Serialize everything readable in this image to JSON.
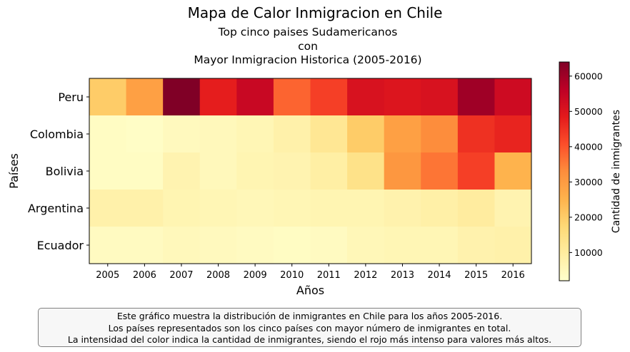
{
  "title": "Mapa de Calor Inmigracion en Chile",
  "subtitle_lines": [
    "Top cinco paises Sudamericanos",
    "con",
    "Mayor Inmigracion Historica (2005-2016)"
  ],
  "caption_lines": [
    "Este gráfico muestra la distribución de inmigrantes en Chile para los años 2005-2016.",
    "Los países representados son los cinco países con mayor número de inmigrantes en total.",
    "La intensidad del color indica la cantidad de inmigrantes, siendo el rojo más intenso para valores más altos."
  ],
  "chart_data": {
    "type": "heatmap",
    "title": "Mapa de Calor Inmigracion en Chile",
    "xlabel": "Años",
    "ylabel": "Países",
    "x": [
      "2005",
      "2006",
      "2007",
      "2008",
      "2009",
      "2010",
      "2011",
      "2012",
      "2013",
      "2014",
      "2015",
      "2016"
    ],
    "y": [
      "Peru",
      "Colombia",
      "Bolivia",
      "Argentina",
      "Ecuador"
    ],
    "values": [
      [
        20000,
        29000,
        64000,
        48000,
        54000,
        38000,
        43000,
        51000,
        50000,
        51000,
        60000,
        53000
      ],
      [
        3500,
        3000,
        4500,
        5000,
        6000,
        8000,
        12000,
        20000,
        29000,
        33000,
        45000,
        47000
      ],
      [
        3500,
        3500,
        7000,
        5000,
        6500,
        7000,
        9000,
        14000,
        31000,
        36000,
        43000,
        25000
      ],
      [
        8000,
        8000,
        6500,
        6000,
        5500,
        6000,
        6500,
        6500,
        7500,
        8500,
        10000,
        7000
      ],
      [
        4000,
        4000,
        5000,
        4500,
        4000,
        3500,
        4000,
        5500,
        6000,
        6000,
        7500,
        8000
      ]
    ],
    "colorbar": {
      "label": "Cantidad de inmigrantes",
      "range": [
        2000,
        64000
      ],
      "ticks": [
        10000,
        20000,
        30000,
        40000,
        50000,
        60000
      ],
      "colormap": "YlOrRd"
    },
    "grid": false
  }
}
